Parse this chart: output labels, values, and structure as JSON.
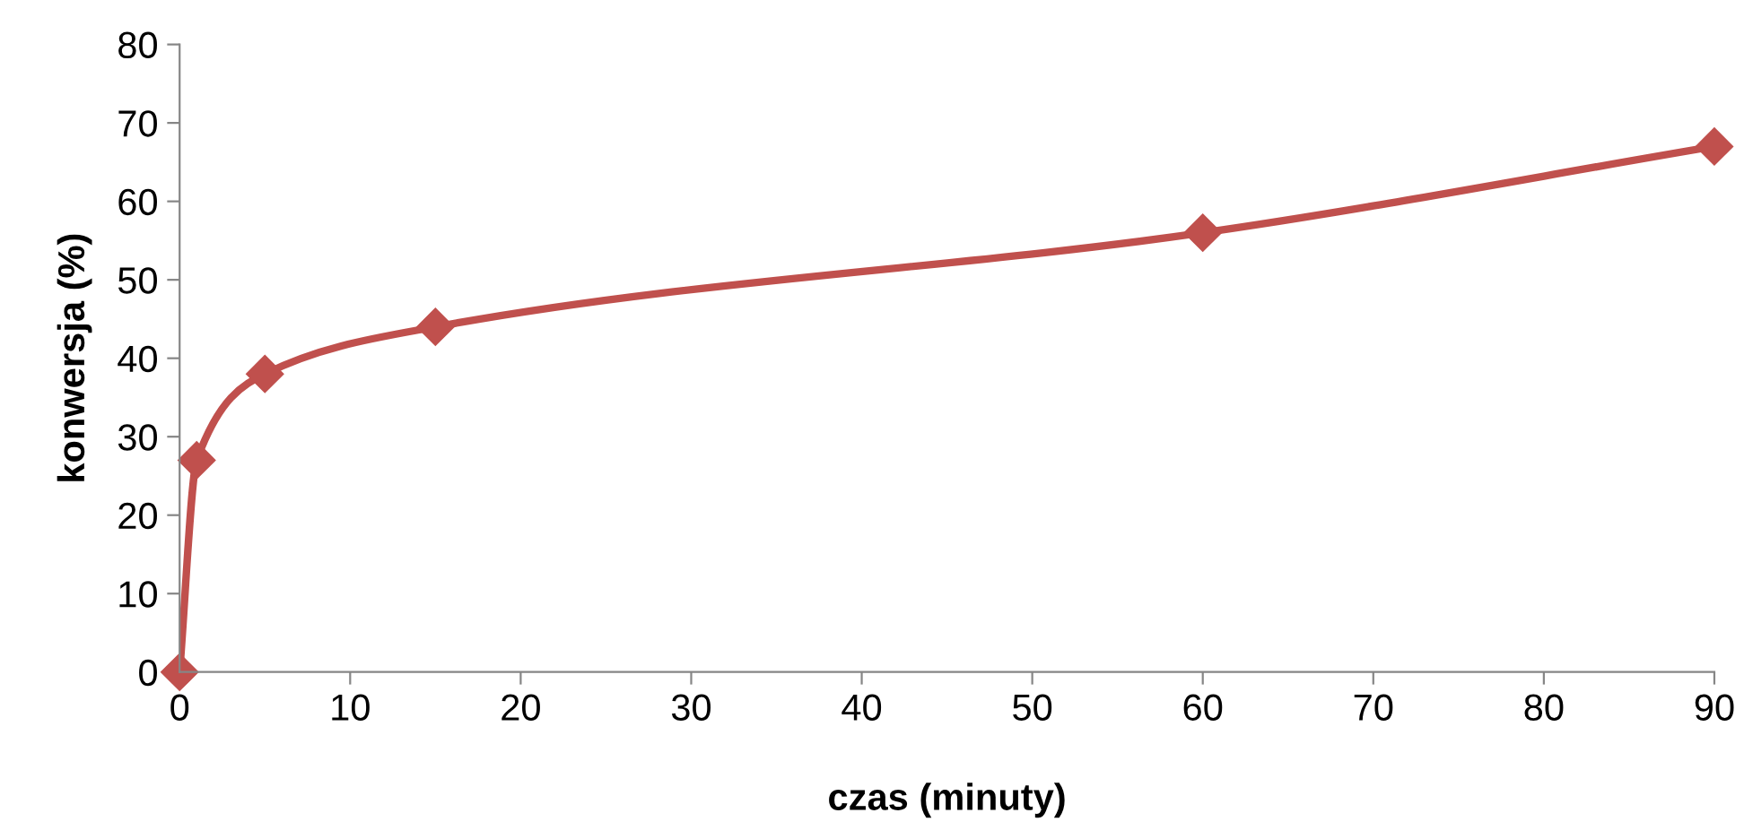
{
  "chart_data": {
    "type": "line",
    "xlabel": "czas (minuty)",
    "ylabel": "konwersja (%)",
    "x": [
      0,
      1,
      5,
      15,
      60,
      90
    ],
    "series": [
      {
        "color": "#c0504d",
        "values": [
          0,
          27,
          38,
          44,
          56,
          67
        ]
      }
    ],
    "xlim": [
      0,
      90
    ],
    "xticks": [
      0,
      10,
      20,
      30,
      40,
      50,
      60,
      70,
      80,
      90
    ],
    "ylim": [
      0,
      80
    ],
    "yticks": [
      0,
      10,
      20,
      30,
      40,
      50,
      60,
      70,
      80
    ],
    "grid": false,
    "legend": false,
    "marker": "diamond",
    "line_style": "solid"
  }
}
